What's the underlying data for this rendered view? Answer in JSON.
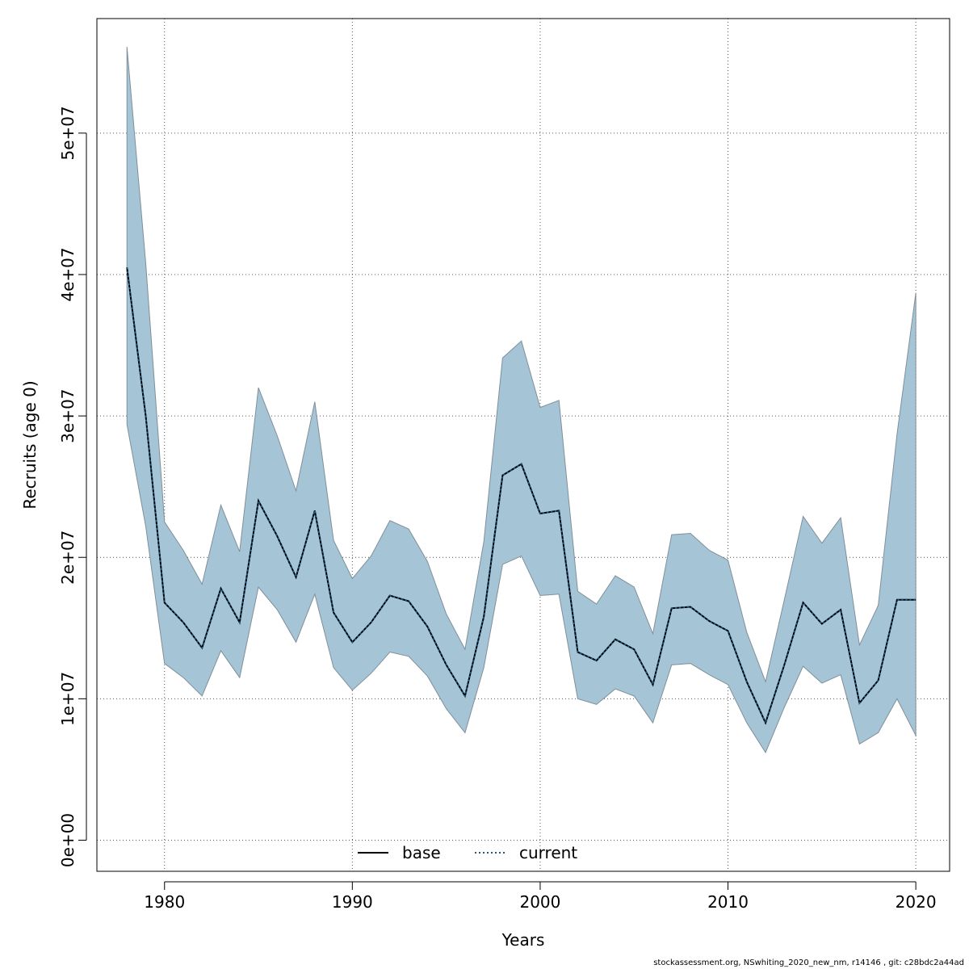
{
  "chart_data": {
    "type": "line",
    "xlabel": "Years",
    "ylabel": "Recruits (age 0)",
    "xlim": [
      1976.4,
      2021.8
    ],
    "ylim": [
      -2200000,
      58100000
    ],
    "x_ticks": [
      1980,
      1990,
      2000,
      2010,
      2020
    ],
    "y_ticks": [
      0,
      10000000,
      20000000,
      30000000,
      40000000,
      50000000
    ],
    "y_tick_labels": [
      "0e+00",
      "1e+07",
      "2e+07",
      "3e+07",
      "4e+07",
      "5e+07"
    ],
    "grid": true,
    "legend": {
      "position": "bottom-center",
      "entries": [
        "base",
        "current"
      ]
    },
    "x": [
      1978,
      1979,
      1980,
      1981,
      1982,
      1983,
      1984,
      1985,
      1986,
      1987,
      1988,
      1989,
      1990,
      1991,
      1992,
      1993,
      1994,
      1995,
      1996,
      1997,
      1998,
      1999,
      2000,
      2001,
      2002,
      2003,
      2004,
      2005,
      2006,
      2007,
      2008,
      2009,
      2010,
      2011,
      2012,
      2013,
      2014,
      2015,
      2016,
      2017,
      2018,
      2019,
      2020
    ],
    "series": [
      {
        "name": "base",
        "style": "solid",
        "color": "#000000",
        "values": [
          40500000,
          30000000,
          16800000,
          15400000,
          13600000,
          17800000,
          15400000,
          24000000,
          21500000,
          18600000,
          23300000,
          16100000,
          14000000,
          15400000,
          17300000,
          16900000,
          15100000,
          12400000,
          10200000,
          15800000,
          25800000,
          26600000,
          23100000,
          23300000,
          13300000,
          12700000,
          14200000,
          13500000,
          11000000,
          16400000,
          16500000,
          15500000,
          14800000,
          11200000,
          8300000,
          12400000,
          16800000,
          15300000,
          16300000,
          9700000,
          11300000,
          17000000,
          17000000
        ]
      },
      {
        "name": "current",
        "style": "dotted",
        "color": "#1f5a85",
        "values": [
          40500000,
          30000000,
          16800000,
          15400000,
          13600000,
          17800000,
          15400000,
          24000000,
          21500000,
          18600000,
          23300000,
          16100000,
          14000000,
          15400000,
          17300000,
          16900000,
          15100000,
          12400000,
          10200000,
          15800000,
          25800000,
          26600000,
          23100000,
          23300000,
          13300000,
          12700000,
          14200000,
          13500000,
          11000000,
          16400000,
          16500000,
          15500000,
          14800000,
          11200000,
          8300000,
          12400000,
          16800000,
          15300000,
          16300000,
          9700000,
          11300000,
          17000000,
          17000000
        ]
      }
    ],
    "confidence_band": {
      "color": "#a5c5d7",
      "upper": [
        56100000,
        40800000,
        22500000,
        20500000,
        18100000,
        23700000,
        20400000,
        32000000,
        28600000,
        24700000,
        31000000,
        21200000,
        18500000,
        20100000,
        22600000,
        22000000,
        19700000,
        16000000,
        13500000,
        21100000,
        34100000,
        35300000,
        30600000,
        31100000,
        17600000,
        16700000,
        18700000,
        17900000,
        14600000,
        21600000,
        21700000,
        20500000,
        19800000,
        14700000,
        11200000,
        17000000,
        22900000,
        21000000,
        22800000,
        13800000,
        16600000,
        28700000,
        38700000
      ],
      "lower": [
        29400000,
        22200000,
        12500000,
        11500000,
        10200000,
        13400000,
        11500000,
        17900000,
        16300000,
        14000000,
        17400000,
        12200000,
        10600000,
        11800000,
        13300000,
        13000000,
        11600000,
        9300000,
        7600000,
        12200000,
        19500000,
        20100000,
        17300000,
        17400000,
        10000000,
        9600000,
        10700000,
        10200000,
        8300000,
        12400000,
        12500000,
        11700000,
        11000000,
        8300000,
        6200000,
        9400000,
        12300000,
        11100000,
        11700000,
        6800000,
        7600000,
        10000000,
        7400000
      ]
    }
  },
  "footer": "stockassessment.org, NSwhiting_2020_new_nm, r14146 , git: c28bdc2a44ad"
}
